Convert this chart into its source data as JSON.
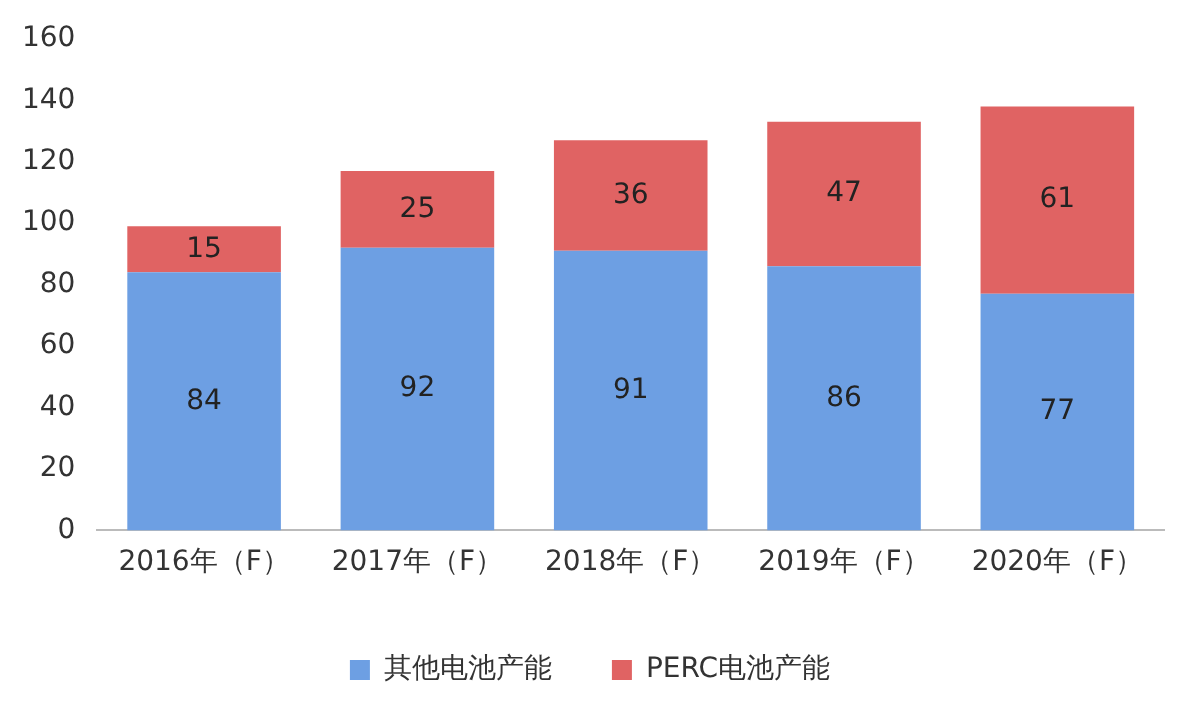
{
  "chart_data": {
    "type": "bar",
    "stacked": true,
    "categories": [
      "2016年（F）",
      "2017年（F）",
      "2018年（F）",
      "2019年（F）",
      "2020年（F）"
    ],
    "series": [
      {
        "name": "其他电池产能",
        "color": "#6d9fe3",
        "values": [
          84,
          92,
          91,
          86,
          77
        ]
      },
      {
        "name": "PERC电池产能",
        "color": "#e06363",
        "values": [
          15,
          25,
          36,
          47,
          61
        ]
      }
    ],
    "ylim": [
      0,
      160
    ],
    "yticks": [
      0,
      20,
      40,
      60,
      80,
      100,
      120,
      140,
      160
    ],
    "grid": false,
    "legend": "bottom",
    "data_labels": true
  }
}
